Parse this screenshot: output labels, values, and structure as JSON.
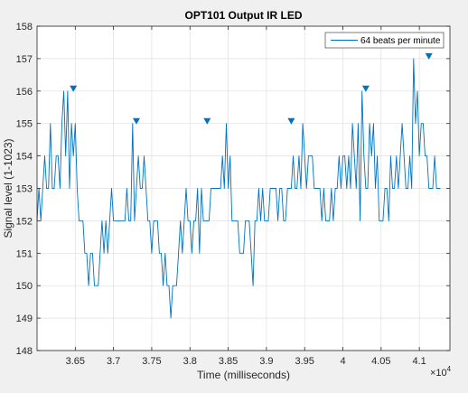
{
  "chart_data": {
    "type": "line",
    "title": "OPT101 Output IR LED",
    "xlabel": "Time (milliseconds)",
    "ylabel": "Signal level (1-1023)",
    "x_exponent_base": "×10",
    "x_exponent_power": "4",
    "xlim": [
      3.6,
      4.14
    ],
    "ylim": [
      148,
      158
    ],
    "x_ticks": [
      3.65,
      3.7,
      3.75,
      3.8,
      3.85,
      3.9,
      3.95,
      4.0,
      4.05,
      4.1
    ],
    "x_tick_labels": [
      "3.65",
      "3.7",
      "3.75",
      "3.8",
      "3.85",
      "3.9",
      "3.95",
      "4",
      "4.05",
      "4.1"
    ],
    "y_ticks": [
      148,
      149,
      150,
      151,
      152,
      153,
      154,
      155,
      156,
      157,
      158
    ],
    "y_tick_labels": [
      "148",
      "149",
      "150",
      "151",
      "152",
      "153",
      "154",
      "155",
      "156",
      "157",
      "158"
    ],
    "grid": true,
    "legend_position": "top-right",
    "line_color": "#0072BD",
    "series": [
      {
        "name": "64 beats per minute",
        "x_start": 3.6,
        "x_step": 0.0025,
        "y": [
          152,
          153,
          152,
          153,
          154,
          153,
          153,
          155,
          153,
          153,
          154,
          154,
          153,
          155,
          156,
          154,
          156,
          153,
          155,
          154,
          155,
          153,
          152,
          152,
          152,
          151,
          151,
          150,
          151,
          151,
          150,
          150,
          150,
          151,
          152,
          151,
          152,
          151,
          152,
          153,
          152,
          152,
          152,
          152,
          152,
          152,
          152,
          153,
          152,
          152,
          155,
          152,
          153,
          154,
          153,
          153,
          154,
          153,
          152,
          152,
          151,
          152,
          152,
          152,
          151,
          151,
          150,
          151,
          150,
          150,
          149,
          150,
          150,
          150,
          151,
          152,
          151,
          152,
          153,
          152,
          152,
          151,
          152,
          152,
          153,
          151,
          153,
          152,
          152,
          152,
          152,
          153,
          153,
          153,
          153,
          153,
          153,
          154,
          153,
          155,
          153,
          154,
          152,
          152,
          152,
          152,
          151,
          151,
          151,
          152,
          152,
          152,
          151,
          150,
          152,
          152,
          153,
          152,
          153,
          152,
          152,
          152,
          153,
          153,
          153,
          153,
          152,
          153,
          153,
          152,
          152,
          153,
          153,
          153,
          154,
          153,
          153,
          154,
          153,
          155,
          154,
          153,
          154,
          154,
          154,
          153,
          153,
          153,
          153,
          152,
          153,
          152,
          152,
          152,
          153,
          152,
          153,
          153,
          154,
          153,
          154,
          154,
          153,
          154,
          153,
          155,
          154,
          153,
          155,
          152,
          156,
          154,
          153,
          153,
          155,
          154,
          155,
          153,
          154,
          152,
          152,
          152,
          153,
          153,
          152,
          154,
          153,
          153,
          154,
          153,
          154,
          155,
          154,
          153,
          153,
          154,
          153,
          157,
          155,
          156,
          154,
          155,
          155,
          154,
          154,
          153,
          153,
          153,
          154,
          153,
          153,
          153
        ]
      }
    ],
    "peaks": {
      "x": [
        3.6475,
        3.73,
        3.8225,
        3.9325,
        4.03,
        4.1125
      ],
      "y": [
        156,
        155,
        155,
        155,
        156,
        157
      ]
    }
  }
}
